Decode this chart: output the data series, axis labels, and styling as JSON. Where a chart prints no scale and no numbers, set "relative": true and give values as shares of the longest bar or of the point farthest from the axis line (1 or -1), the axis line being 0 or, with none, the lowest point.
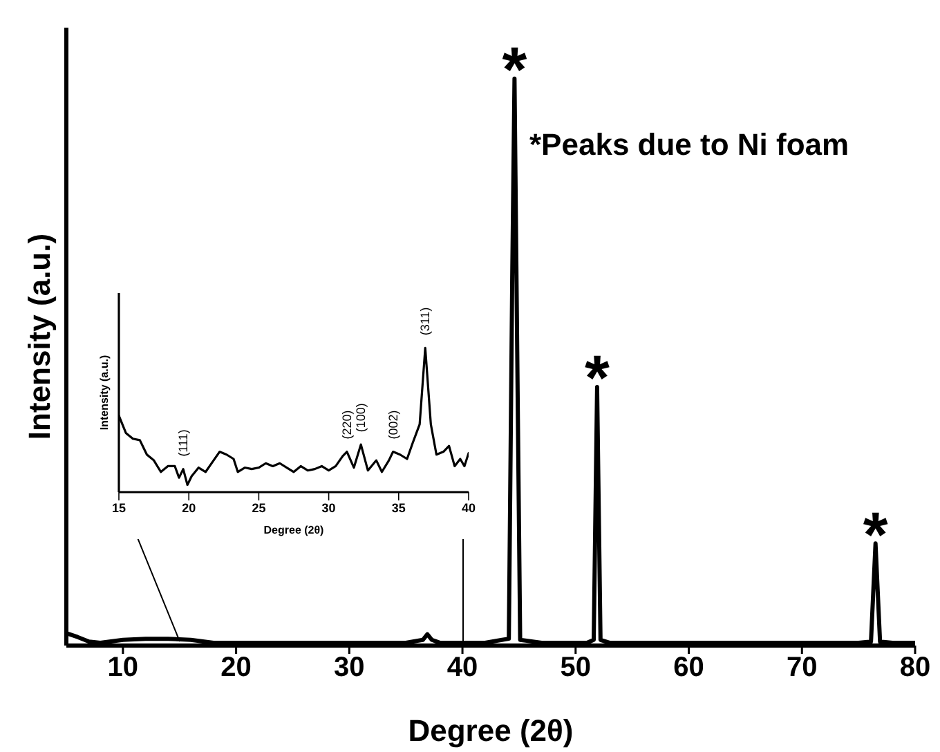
{
  "chart_data": [
    {
      "type": "line",
      "relative": true,
      "xlabel": "Degree (2θ)",
      "ylabel": "Intensity (a.u.)",
      "xlim": [
        5,
        80
      ],
      "xticks": [
        10,
        20,
        30,
        40,
        50,
        60,
        70,
        80
      ],
      "series": [
        {
          "color": "#000000",
          "x": [
            5,
            6,
            7,
            8,
            10,
            12,
            14,
            16,
            18,
            20,
            25,
            30,
            35,
            36.5,
            36.9,
            37.3,
            38,
            42,
            43.5,
            44.1,
            44.4,
            44.6,
            44.9,
            45.1,
            47,
            51,
            51.6,
            51.9,
            52.2,
            53,
            60,
            70,
            75,
            76.1,
            76.5,
            76.9,
            78,
            80
          ],
          "values": [
            0.022,
            0.015,
            0.007,
            0.005,
            0.01,
            0.012,
            0.012,
            0.01,
            0.005,
            0.005,
            0.005,
            0.005,
            0.005,
            0.01,
            0.02,
            0.01,
            0.005,
            0.005,
            0.01,
            0.012,
            0.65,
            1,
            0.4,
            0.01,
            0.005,
            0.005,
            0.01,
            0.456,
            0.01,
            0.005,
            0.005,
            0.005,
            0.005,
            0.007,
            0.18,
            0.007,
            0.005,
            0.005
          ]
        }
      ],
      "annotations": [
        {
          "text": "*",
          "x": 44.6,
          "y": 1
        },
        {
          "text": "*",
          "x": 51.9,
          "y": 0.456
        },
        {
          "text": "*",
          "x": 76.5,
          "y": 0.18
        },
        "*Peaks due to Ni foam"
      ]
    },
    {
      "type": "line",
      "relative": true,
      "xlabel": "Degree (2θ)",
      "ylabel": "Intensity (a.u.)",
      "xlim": [
        15,
        40
      ],
      "xticks": [
        15,
        20,
        25,
        30,
        35,
        40
      ],
      "series": [
        {
          "color": "#000000",
          "x": [
            15,
            15.5,
            16,
            16.5,
            17,
            17.5,
            18,
            18.5,
            19,
            19.3,
            19.6,
            19.9,
            20.2,
            20.7,
            21.2,
            21.7,
            22.2,
            22.7,
            23.2,
            23.5,
            24,
            24.5,
            25,
            25.5,
            26,
            26.5,
            27,
            27.5,
            28,
            28.5,
            29,
            29.5,
            30,
            30.5,
            31,
            31.3,
            31.8,
            32.3,
            32.8,
            33.4,
            33.8,
            34.3,
            34.6,
            35.1,
            35.6,
            36,
            36.5,
            36.9,
            37.3,
            37.7,
            38.2,
            38.6,
            39,
            39.4,
            39.7,
            40
          ],
          "values": [
            0.53,
            0.41,
            0.37,
            0.36,
            0.26,
            0.22,
            0.14,
            0.18,
            0.18,
            0.1,
            0.16,
            0.05,
            0.11,
            0.17,
            0.14,
            0.21,
            0.28,
            0.26,
            0.23,
            0.14,
            0.17,
            0.16,
            0.17,
            0.2,
            0.18,
            0.2,
            0.17,
            0.14,
            0.18,
            0.15,
            0.16,
            0.18,
            0.15,
            0.18,
            0.25,
            0.28,
            0.17,
            0.33,
            0.15,
            0.22,
            0.14,
            0.22,
            0.28,
            0.26,
            0.23,
            0.34,
            0.47,
            1,
            0.47,
            0.26,
            0.28,
            0.32,
            0.18,
            0.23,
            0.18,
            0.27
          ]
        }
      ],
      "annotations": [
        {
          "text": "(111)",
          "x": 19.6,
          "y": 0.16
        },
        {
          "text": "(220)",
          "x": 31.3,
          "y": 0.28
        },
        {
          "text": "(100)",
          "x": 32.3,
          "y": 0.33
        },
        {
          "text": "(002)",
          "x": 34.6,
          "y": 0.28
        },
        {
          "text": "(311)",
          "x": 36.9,
          "y": 1
        }
      ]
    }
  ]
}
